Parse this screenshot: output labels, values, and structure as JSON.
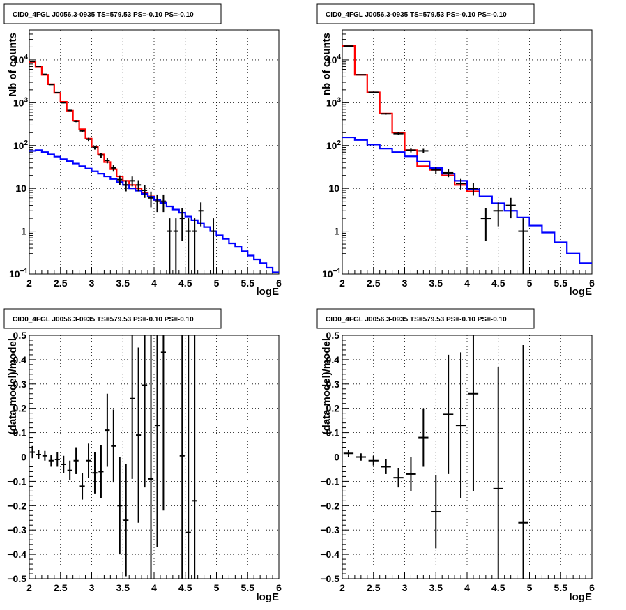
{
  "chart_data": [
    {
      "panel": "top-left",
      "type": "line",
      "title": "CID0_4FGL J0056.3-0935 TS=579.53 PS=-0.10 PS=-0.10",
      "xlabel": "logE",
      "ylabel": "Nb of counts",
      "xlim": [
        2,
        6
      ],
      "ylim": [
        0.1,
        50000
      ],
      "yscale": "log",
      "grid": true,
      "xticks": [
        2,
        2.5,
        3,
        3.5,
        4,
        4.5,
        5,
        5.5,
        6
      ],
      "xtick_labels": [
        "2",
        "2.5",
        "3",
        "3.5",
        "4",
        "4.5",
        "5",
        "5.5",
        "6"
      ],
      "yticks": [
        0.1,
        1,
        10,
        100,
        1000,
        10000
      ],
      "ytick_labels": [
        {
          "base": "10",
          "exp": "−1"
        },
        {
          "base": "1",
          "exp": ""
        },
        {
          "base": "10",
          "exp": ""
        },
        {
          "base": "10",
          "exp": "2"
        },
        {
          "base": "10",
          "exp": "3"
        },
        {
          "base": "10",
          "exp": "4"
        }
      ],
      "bin_width": 0.1,
      "series": [
        {
          "color": "#ff0000",
          "style": "step",
          "x": [
            2.05,
            2.15,
            2.25,
            2.35,
            2.45,
            2.55,
            2.65,
            2.75,
            2.85,
            2.95,
            3.05,
            3.15,
            3.25,
            3.35,
            3.45,
            3.55,
            3.65,
            3.75,
            3.85,
            3.95,
            4.05,
            4.15
          ],
          "values": [
            9000,
            7000,
            4500,
            2700,
            1700,
            1050,
            650,
            380,
            240,
            145,
            95,
            62,
            41,
            28,
            19,
            15,
            12,
            10,
            8,
            6.5,
            5.4,
            4.6
          ]
        },
        {
          "color": "#0000ff",
          "style": "step",
          "x": [
            2.05,
            2.15,
            2.25,
            2.35,
            2.45,
            2.55,
            2.65,
            2.75,
            2.85,
            2.95,
            3.05,
            3.15,
            3.25,
            3.35,
            3.45,
            3.55,
            3.65,
            3.75,
            3.85,
            3.95,
            4.05,
            4.15,
            4.25,
            4.35,
            4.45,
            4.55,
            4.65,
            4.75,
            4.85,
            4.95,
            5.05,
            5.15,
            5.25,
            5.35,
            5.45,
            5.55,
            5.65,
            5.75,
            5.85,
            5.95
          ],
          "values": [
            75,
            78,
            70,
            62,
            55,
            48,
            43,
            38,
            33,
            29,
            25,
            22,
            19,
            16.5,
            14,
            12,
            10,
            8.8,
            7.5,
            6.4,
            5.4,
            4.6,
            3.8,
            3.2,
            2.7,
            2.2,
            1.8,
            1.5,
            1.25,
            1.0,
            0.8,
            0.66,
            0.52,
            0.43,
            0.34,
            0.27,
            0.22,
            0.18,
            0.14,
            0.11
          ]
        },
        {
          "color": "#000000",
          "style": "errorbar",
          "x": [
            2.05,
            2.15,
            2.25,
            2.35,
            2.45,
            2.55,
            2.65,
            2.75,
            2.85,
            2.95,
            3.05,
            3.15,
            3.25,
            3.35,
            3.45,
            3.55,
            3.65,
            3.75,
            3.85,
            3.95,
            4.05,
            4.15,
            4.25,
            4.35,
            4.45,
            4.55,
            4.65,
            4.75,
            4.95
          ],
          "values": [
            9200,
            7100,
            4600,
            2650,
            1720,
            1000,
            660,
            370,
            220,
            140,
            90,
            60,
            45,
            30,
            16,
            12,
            15,
            12,
            9,
            6,
            5,
            5,
            1,
            1,
            2,
            1,
            1,
            3,
            1
          ],
          "yerr": [
            96,
            84,
            68,
            52,
            41,
            32,
            26,
            19,
            15,
            12,
            9.5,
            7.7,
            6.7,
            5.5,
            4,
            3.5,
            3.9,
            3.5,
            3,
            2.4,
            2.2,
            2.2,
            1,
            1,
            1.4,
            1,
            1,
            1.7,
            1
          ]
        }
      ]
    },
    {
      "panel": "top-right",
      "type": "line",
      "title": "CID0_4FGL J0056.3-0935 TS=579.53 PS=-0.10 PS=-0.10",
      "xlabel": "logE",
      "ylabel": "nb of counts",
      "xlim": [
        2,
        6
      ],
      "ylim": [
        0.1,
        50000
      ],
      "yscale": "log",
      "grid": true,
      "xticks": [
        2,
        2.5,
        3,
        3.5,
        4,
        4.5,
        5,
        5.5,
        6
      ],
      "xtick_labels": [
        "2",
        "2.5",
        "3",
        "3.5",
        "4",
        "4.5",
        "5",
        "5.5",
        "6"
      ],
      "yticks": [
        0.1,
        1,
        10,
        100,
        1000,
        10000
      ],
      "ytick_labels": [
        {
          "base": "10",
          "exp": "−1"
        },
        {
          "base": "1",
          "exp": ""
        },
        {
          "base": "10",
          "exp": ""
        },
        {
          "base": "10",
          "exp": "2"
        },
        {
          "base": "10",
          "exp": "3"
        },
        {
          "base": "10",
          "exp": "4"
        }
      ],
      "bin_width": 0.2,
      "series": [
        {
          "color": "#ff0000",
          "style": "step",
          "x": [
            2.1,
            2.3,
            2.5,
            2.7,
            2.9,
            3.1,
            3.3,
            3.5,
            3.7,
            3.9,
            4.1
          ],
          "values": [
            21000,
            4500,
            1750,
            560,
            200,
            78,
            33,
            27,
            20,
            12,
            8.5
          ]
        },
        {
          "color": "#0000ff",
          "style": "step",
          "x": [
            2.1,
            2.3,
            2.5,
            2.7,
            2.9,
            3.1,
            3.3,
            3.5,
            3.7,
            3.9,
            4.1,
            4.3,
            4.5,
            4.7,
            4.9,
            5.1,
            5.3,
            5.5,
            5.7,
            5.9
          ],
          "values": [
            155,
            135,
            105,
            85,
            70,
            56,
            42,
            30,
            22,
            15,
            9.5,
            6.5,
            4.5,
            3.0,
            2.1,
            1.35,
            0.93,
            0.55,
            0.3,
            0.18
          ]
        },
        {
          "color": "#000000",
          "style": "errorbar",
          "x": [
            2.1,
            2.3,
            2.5,
            2.7,
            2.9,
            3.1,
            3.3,
            3.5,
            3.7,
            3.9,
            4.1,
            4.3,
            4.5,
            4.7,
            4.9
          ],
          "values": [
            21000,
            4500,
            1750,
            550,
            190,
            78,
            75,
            27,
            23,
            13,
            10,
            2,
            3,
            4,
            1
          ],
          "yerr": [
            145,
            67,
            42,
            23,
            14,
            8.8,
            8.7,
            5.2,
            4.8,
            3.6,
            3.2,
            1.4,
            1.7,
            2,
            1
          ]
        }
      ]
    },
    {
      "panel": "bottom-left",
      "type": "scatter",
      "title": "CID0_4FGL J0056.3-0935 TS=579.53 PS=-0.10 PS=-0.10",
      "xlabel": "logE",
      "ylabel": "(data-model)/model",
      "xlim": [
        2,
        6
      ],
      "ylim": [
        -0.5,
        0.5
      ],
      "grid": true,
      "xticks": [
        2,
        2.5,
        3,
        3.5,
        4,
        4.5,
        5,
        5.5,
        6
      ],
      "xtick_labels": [
        "2",
        "2.5",
        "3",
        "3.5",
        "4",
        "4.5",
        "5",
        "5.5",
        "6"
      ],
      "yticks": [
        -0.5,
        -0.4,
        -0.3,
        -0.2,
        -0.1,
        0,
        0.1,
        0.2,
        0.3,
        0.4,
        0.5
      ],
      "ytick_labels": [
        "−0.5",
        "−0.4",
        "−0.3",
        "−0.2",
        "−0.1",
        "0",
        "0.1",
        "0.2",
        "0.3",
        "0.4",
        "0.5"
      ],
      "bin_width": 0.1,
      "series": [
        {
          "color": "#000000",
          "style": "errorbar",
          "x": [
            2.05,
            2.15,
            2.25,
            2.35,
            2.45,
            2.55,
            2.65,
            2.75,
            2.85,
            2.95,
            3.05,
            3.15,
            3.25,
            3.35,
            3.45,
            3.55,
            3.65,
            3.75,
            3.85,
            3.95,
            4.05,
            4.15,
            4.45,
            4.55,
            4.65
          ],
          "values": [
            0.02,
            0.01,
            0.005,
            -0.015,
            -0.01,
            -0.03,
            -0.055,
            -0.015,
            -0.12,
            -0.015,
            -0.065,
            -0.06,
            0.11,
            0.045,
            -0.2,
            -0.26,
            0.24,
            0.09,
            0.295,
            -0.09,
            0.13,
            0.43,
            0.005,
            -0.31,
            -0.18
          ],
          "yerr": [
            0.025,
            0.02,
            0.02,
            0.025,
            0.03,
            0.035,
            0.04,
            0.055,
            0.055,
            0.07,
            0.085,
            0.11,
            0.15,
            0.15,
            0.2,
            0.23,
            0.33,
            0.36,
            0.42,
            0.9,
            0.5,
            0.65,
            1.0,
            1.0,
            1.0
          ]
        }
      ]
    },
    {
      "panel": "bottom-right",
      "type": "scatter",
      "title": "CID0_4FGL J0056.3-0935 TS=579.53 PS=-0.10 PS=-0.10",
      "xlabel": "logE",
      "ylabel": "(data-model)/model",
      "xlim": [
        2,
        6
      ],
      "ylim": [
        -0.5,
        0.5
      ],
      "grid": true,
      "xticks": [
        2,
        2.5,
        3,
        3.5,
        4,
        4.5,
        5,
        5.5,
        6
      ],
      "xtick_labels": [
        "2",
        "2.5",
        "3",
        "3.5",
        "4",
        "4.5",
        "5",
        "5.5",
        "6"
      ],
      "yticks": [
        -0.5,
        -0.4,
        -0.3,
        -0.2,
        -0.1,
        0,
        0.1,
        0.2,
        0.3,
        0.4,
        0.5
      ],
      "ytick_labels": [
        "−0.5",
        "−0.4",
        "−0.3",
        "−0.2",
        "−0.1",
        "0",
        "0.1",
        "0.2",
        "0.3",
        "0.4",
        "0.5"
      ],
      "bin_width": 0.2,
      "series": [
        {
          "color": "#000000",
          "style": "errorbar",
          "x": [
            2.1,
            2.3,
            2.5,
            2.7,
            2.9,
            3.1,
            3.3,
            3.5,
            3.7,
            3.9,
            4.1,
            4.5,
            4.9
          ],
          "values": [
            0.015,
            0.0,
            -0.015,
            -0.04,
            -0.085,
            -0.07,
            0.08,
            -0.225,
            0.175,
            0.13,
            0.26,
            -0.13,
            -0.27
          ],
          "yerr": [
            0.015,
            0.015,
            0.02,
            0.03,
            0.04,
            0.07,
            0.12,
            0.15,
            0.245,
            0.3,
            0.4,
            0.5,
            0.73
          ]
        }
      ]
    }
  ]
}
